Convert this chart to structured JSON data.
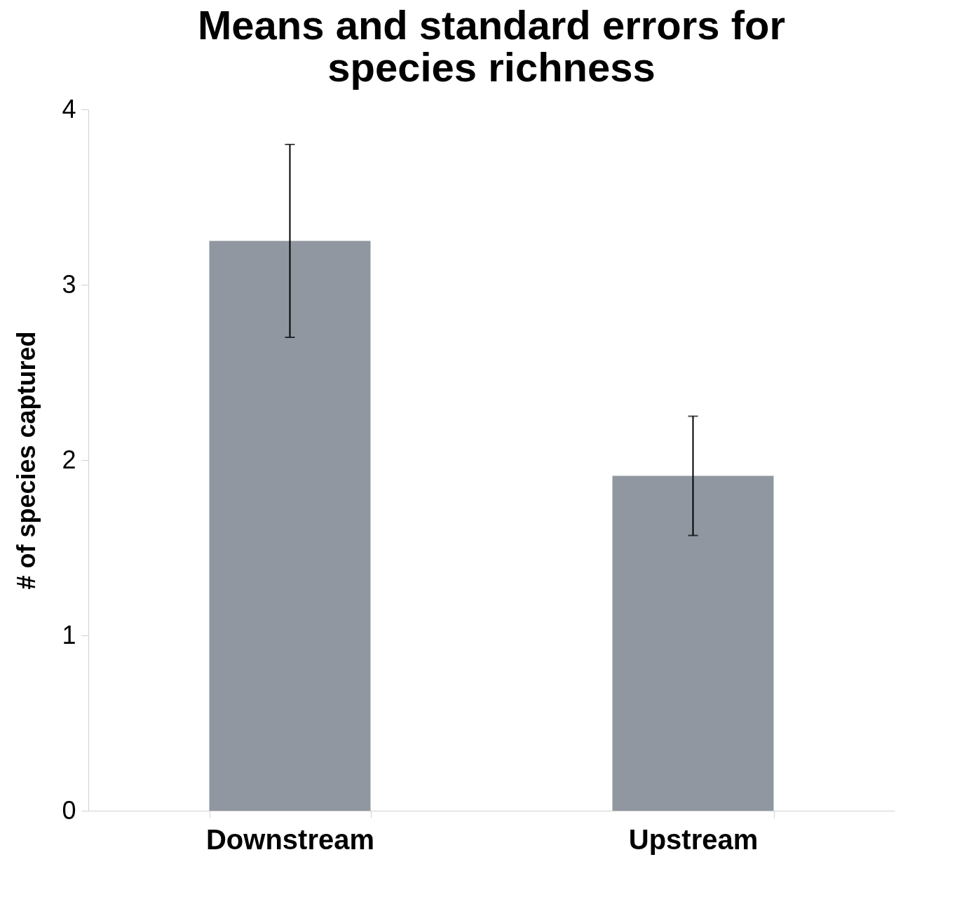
{
  "chart_data": {
    "type": "bar",
    "title": [
      "Means and standard errors for",
      "species richness"
    ],
    "ylabel": "# of species captured",
    "categories": [
      "Downstream",
      "Upstream"
    ],
    "values": [
      3.25,
      1.91
    ],
    "errors": [
      0.55,
      0.34
    ],
    "color": "#9097a0",
    "ylim": [
      0,
      4
    ],
    "yticks": [
      0,
      1,
      2,
      3,
      4
    ],
    "grid": false
  }
}
